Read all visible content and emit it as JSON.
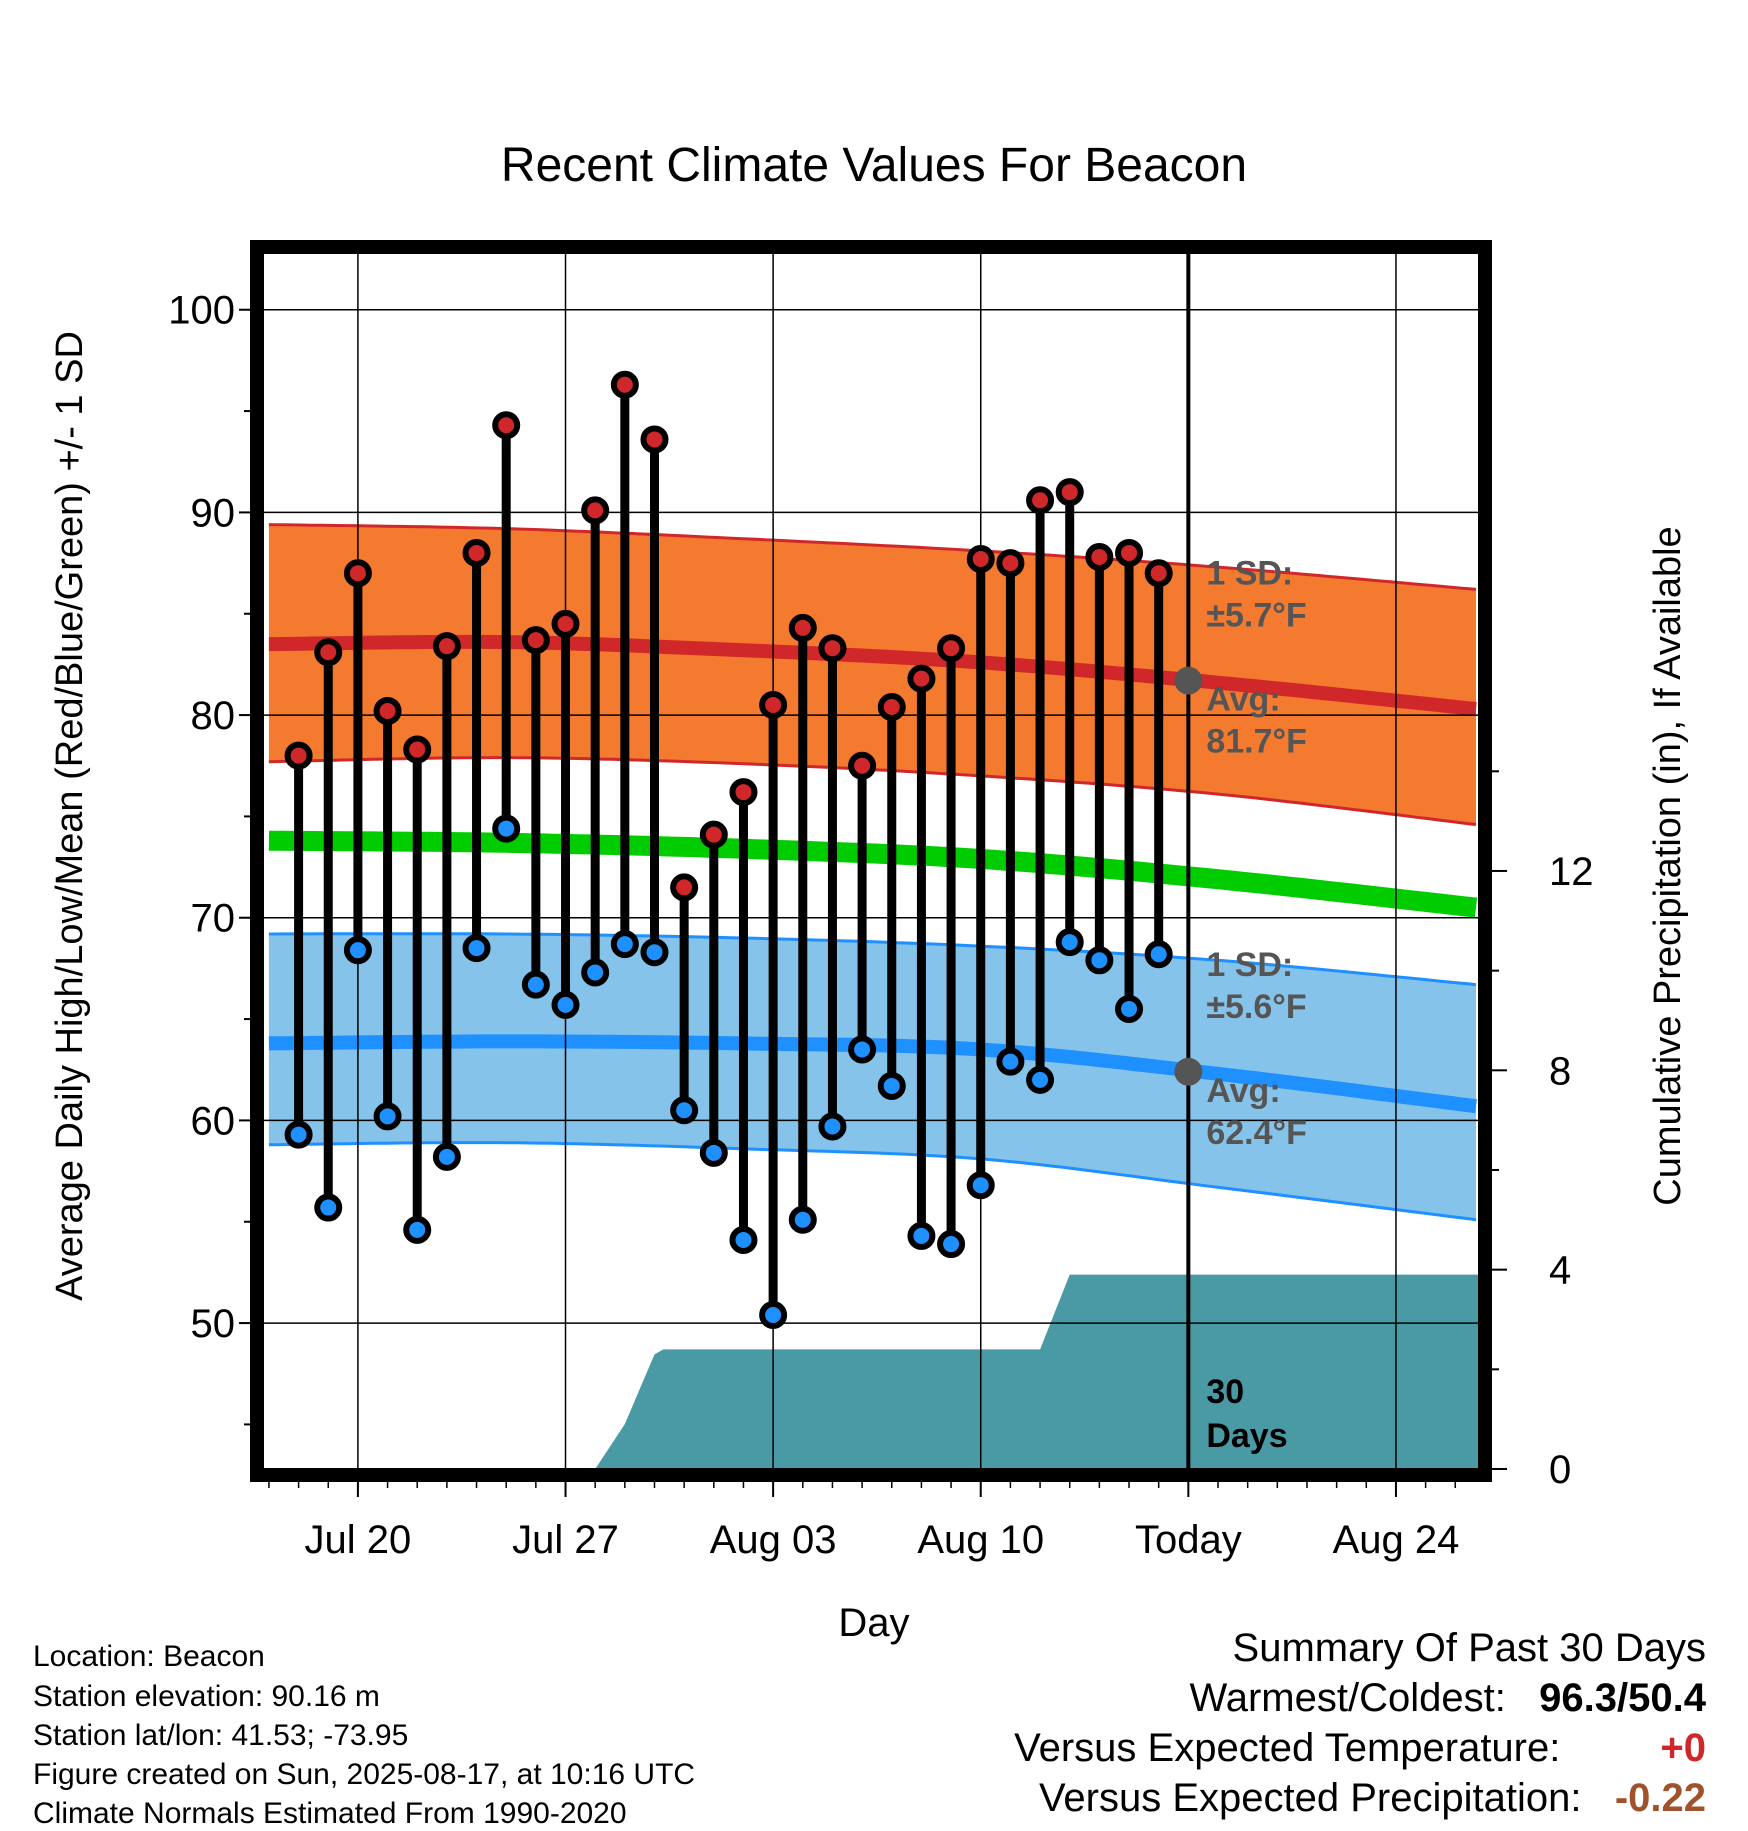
{
  "chart_data": {
    "type": "line",
    "title": "Recent Climate Values For Beacon",
    "xlabel": "Day",
    "ylabel": "Average Daily High/Low/Mean (Red/Blue/Green) +/- 1 SD",
    "y2label": "Cumulative Precipitation (in), If Available",
    "x_ticks": [
      "Jul 20",
      "Jul 27",
      "Aug 03",
      "Aug 10",
      "Today",
      "Aug 24"
    ],
    "x_tick_days": [
      20,
      27,
      34,
      41,
      48,
      55
    ],
    "xlim": [
      16.8,
      57.8
    ],
    "ylim": [
      42.8,
      102.8
    ],
    "y_ticks": [
      50,
      60,
      70,
      80,
      90,
      100
    ],
    "y2lim": [
      0,
      24.4
    ],
    "y2_ticks": [
      0,
      4,
      8,
      12
    ],
    "grid": true,
    "today_day": 48,
    "observed": {
      "days": [
        18,
        19,
        20,
        21,
        22,
        23,
        24,
        25,
        26,
        27,
        28,
        29,
        30,
        31,
        32,
        33,
        34,
        35,
        36,
        37,
        38,
        39,
        40,
        41,
        42,
        43,
        44,
        45,
        46,
        47
      ],
      "highs": [
        78.0,
        83.1,
        87.0,
        80.2,
        78.3,
        83.4,
        88.0,
        94.3,
        83.7,
        84.5,
        90.1,
        96.3,
        93.6,
        71.5,
        74.1,
        76.2,
        80.5,
        84.3,
        83.3,
        77.5,
        80.4,
        81.8,
        83.3,
        87.7,
        87.5,
        90.6,
        91.0,
        87.8,
        88.0,
        87.0
      ],
      "lows": [
        59.3,
        55.7,
        68.4,
        60.2,
        54.6,
        58.2,
        68.5,
        74.4,
        66.7,
        65.7,
        67.3,
        68.7,
        68.3,
        60.5,
        58.4,
        54.1,
        50.4,
        55.1,
        59.7,
        63.5,
        61.7,
        54.3,
        53.9,
        56.8,
        62.9,
        62.0,
        68.8,
        67.9,
        65.5,
        68.2
      ]
    },
    "normals": {
      "days": [
        17,
        25,
        33,
        41,
        49,
        57.7
      ],
      "avg_high": [
        83.5,
        83.6,
        83.2,
        82.6,
        81.6,
        80.3
      ],
      "avg_high_sd_upper": [
        89.4,
        89.2,
        88.7,
        88.1,
        87.3,
        86.2
      ],
      "avg_high_sd_lower": [
        77.7,
        77.9,
        77.6,
        77.0,
        76.1,
        74.6
      ],
      "avg_mean": [
        73.8,
        73.7,
        73.4,
        72.9,
        71.9,
        70.5
      ],
      "avg_low": [
        63.8,
        63.9,
        63.8,
        63.5,
        62.3,
        60.7
      ],
      "avg_low_sd_upper": [
        69.2,
        69.2,
        69.0,
        68.6,
        67.9,
        66.7
      ],
      "avg_low_sd_lower": [
        58.8,
        58.9,
        58.6,
        58.1,
        56.7,
        55.1
      ]
    },
    "precipitation": {
      "days": [
        28.0,
        29.0,
        30.0,
        30.3,
        41.0,
        43.0,
        44.0,
        57.8
      ],
      "cumulative_in": [
        0,
        0.9,
        2.3,
        2.4,
        2.4,
        2.4,
        3.9,
        3.9
      ]
    },
    "annotations": {
      "high_sd": "1 SD:",
      "high_sd_value": "±5.7°F",
      "high_avg": "Avg:",
      "high_avg_value": "81.7°F",
      "low_sd": "1 SD:",
      "low_sd_value": "±5.6°F",
      "low_avg": "Avg:",
      "low_avg_value": "62.4°F",
      "window_days": "30",
      "window_label": "Days"
    },
    "colors": {
      "high_band": "#f47a30",
      "high_line": "#d0282a",
      "mean_line": "#00cc00",
      "low_band": "#86c3ea",
      "low_line": "#1e90ff",
      "precip": "#4a9aa5",
      "high_dot": "#d0282a",
      "low_dot": "#1e90ff",
      "today_marker": "#555555"
    }
  },
  "metadata": {
    "location": "Location: Beacon",
    "elevation": "Station elevation: 90.16 m",
    "latlon": "Station lat/lon: 41.53; -73.95",
    "created": "Figure created on Sun, 2025-08-17, at 10:16 UTC",
    "normals": "Climate Normals Estimated From 1990-2020"
  },
  "summary": {
    "title": "Summary Of Past 30 Days",
    "warm_cold_label": "Warmest/Coldest:",
    "warm_cold_value": "96.3/50.4",
    "temp_label": "Versus Expected Temperature:",
    "temp_value": "+0",
    "temp_color": "#d0282a",
    "precip_label": "Versus Expected Precipitation:",
    "precip_value": "-0.22",
    "precip_color": "#a0522d"
  }
}
